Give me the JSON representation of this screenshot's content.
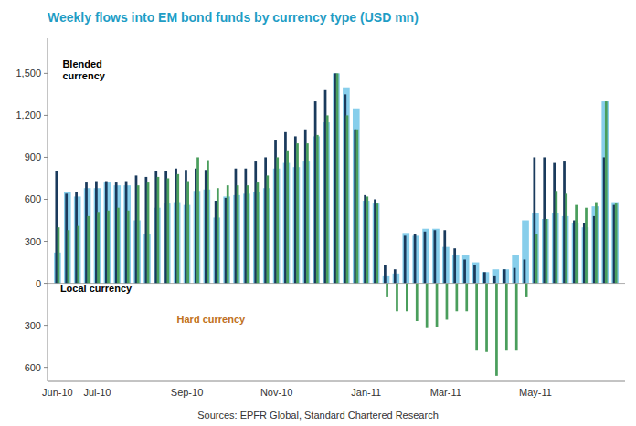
{
  "chart_data": {
    "type": "bar",
    "title": "Weekly flows into EM bond funds by currency type (USD mn)",
    "source": "Sources: EPFR Global, Standard Chartered Research",
    "annotations": [
      "Blended\ncurrency",
      "Local currency",
      "Hard currency"
    ],
    "categories": [
      "Jun-10",
      null,
      null,
      null,
      "Jul-10",
      null,
      null,
      null,
      null,
      null,
      null,
      null,
      null,
      "Sep-10",
      null,
      null,
      null,
      null,
      null,
      null,
      null,
      null,
      "Nov-10",
      null,
      null,
      null,
      null,
      null,
      null,
      null,
      null,
      "Jan-11",
      null,
      null,
      null,
      null,
      null,
      null,
      null,
      "Mar-11",
      null,
      null,
      null,
      null,
      null,
      null,
      null,
      null,
      "May-11",
      null,
      null,
      null,
      null,
      null,
      null,
      null,
      null
    ],
    "series": [
      {
        "color": "#87CEEB",
        "values": [
          220,
          650,
          620,
          680,
          680,
          720,
          700,
          700,
          450,
          350,
          540,
          570,
          580,
          560,
          660,
          670,
          470,
          620,
          630,
          640,
          650,
          680,
          820,
          860,
          830,
          870,
          1050,
          1150,
          1500,
          1400,
          1250,
          590,
          570,
          50,
          70,
          360,
          340,
          390,
          390,
          260,
          200,
          200,
          150,
          80,
          100,
          100,
          200,
          450,
          500,
          460,
          500,
          480,
          430,
          400,
          550,
          1300,
          580
        ]
      },
      {
        "color": "#1A3A5C",
        "values": [
          800,
          640,
          650,
          720,
          730,
          730,
          720,
          730,
          770,
          760,
          800,
          800,
          820,
          810,
          820,
          810,
          590,
          610,
          820,
          820,
          870,
          900,
          1020,
          1080,
          1050,
          1100,
          1300,
          1380,
          1500,
          1350,
          1100,
          630,
          600,
          130,
          100,
          340,
          350,
          370,
          380,
          380,
          250,
          170,
          130,
          80,
          50,
          100,
          110,
          170,
          900,
          900,
          860,
          870,
          450,
          430,
          480,
          900,
          560
        ]
      },
      {
        "color": "#4A9E5C",
        "values": [
          400,
          380,
          410,
          480,
          510,
          520,
          540,
          520,
          700,
          720,
          760,
          750,
          780,
          730,
          900,
          880,
          680,
          700,
          700,
          700,
          720,
          770,
          900,
          950,
          1000,
          1000,
          1060,
          1200,
          1500,
          1200,
          1100,
          620,
          570,
          -100,
          -200,
          -200,
          -270,
          -320,
          -310,
          -260,
          -200,
          -200,
          -480,
          -490,
          -660,
          -480,
          -480,
          -100,
          350,
          460,
          660,
          640,
          560,
          540,
          580,
          1300,
          570
        ]
      }
    ],
    "ylim": [
      -700,
      1750
    ],
    "yticks": [
      -600,
      -300,
      0,
      300,
      600,
      900,
      {
        "value": 1200,
        "label": "1,200"
      },
      {
        "value": 1500,
        "label": "1,500"
      }
    ],
    "grid": false
  }
}
